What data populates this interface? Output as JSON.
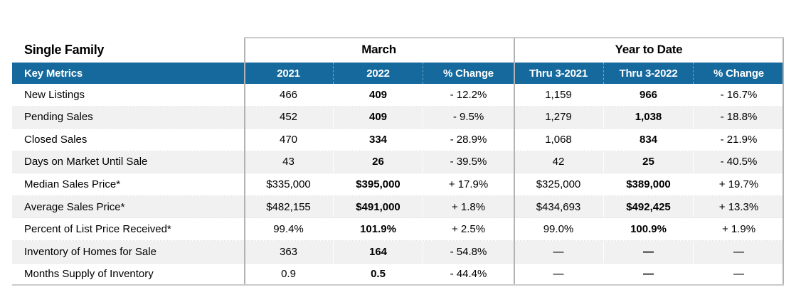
{
  "table": {
    "title": "Single Family",
    "groups": [
      {
        "label": "March"
      },
      {
        "label": "Year to Date"
      }
    ],
    "header": {
      "metrics_label": "Key Metrics",
      "columns": [
        "2021",
        "2022",
        "% Change",
        "Thru 3-2021",
        "Thru 3-2022",
        "% Change"
      ]
    },
    "rows": [
      {
        "metric": "New Listings",
        "values": [
          "466",
          "409",
          "- 12.2%",
          "1,159",
          "966",
          "- 16.7%"
        ]
      },
      {
        "metric": "Pending Sales",
        "values": [
          "452",
          "409",
          "- 9.5%",
          "1,279",
          "1,038",
          "- 18.8%"
        ]
      },
      {
        "metric": "Closed Sales",
        "values": [
          "470",
          "334",
          "- 28.9%",
          "1,068",
          "834",
          "- 21.9%"
        ]
      },
      {
        "metric": "Days on Market Until Sale",
        "values": [
          "43",
          "26",
          "- 39.5%",
          "42",
          "25",
          "- 40.5%"
        ]
      },
      {
        "metric": "Median Sales Price*",
        "values": [
          "$335,000",
          "$395,000",
          "+ 17.9%",
          "$325,000",
          "$389,000",
          "+ 19.7%"
        ]
      },
      {
        "metric": "Average Sales Price*",
        "values": [
          "$482,155",
          "$491,000",
          "+ 1.8%",
          "$434,693",
          "$492,425",
          "+ 13.3%"
        ]
      },
      {
        "metric": "Percent of List Price Received*",
        "values": [
          "99.4%",
          "101.9%",
          "+ 2.5%",
          "99.0%",
          "100.9%",
          "+ 1.9%"
        ]
      },
      {
        "metric": "Inventory of Homes for Sale",
        "values": [
          "363",
          "164",
          "- 54.8%",
          "—",
          "—",
          "—"
        ]
      },
      {
        "metric": "Months Supply of Inventory",
        "values": [
          "0.9",
          "0.5",
          "- 44.4%",
          "—",
          "—",
          "—"
        ]
      }
    ],
    "colors": {
      "header_blue": "#15699d",
      "stripe_gray": "#f1f1f1",
      "border_gray": "#b2b2b2"
    }
  }
}
